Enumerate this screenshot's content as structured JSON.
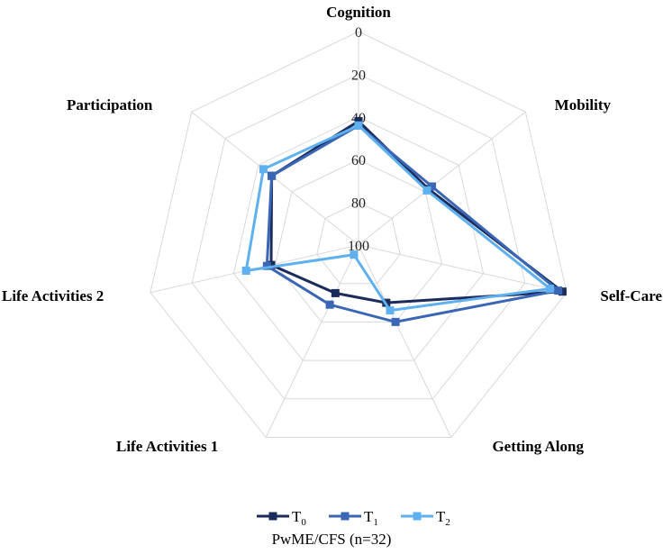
{
  "chart_data": {
    "type": "radar",
    "axes": [
      "Cognition",
      "Mobility",
      "Self-Care",
      "Getting Along",
      "Life Activities 1",
      "Life Activities 2",
      "Participation"
    ],
    "ticks": [
      "0",
      "20",
      "40",
      "60",
      "80",
      "100"
    ],
    "range": [
      0,
      100
    ],
    "reversed": true,
    "grid": true,
    "legend_position": "bottom",
    "series": [
      {
        "name": "T",
        "subscript": "0",
        "color": "#1a2b5c",
        "values": [
          42,
          58,
          2,
          70,
          75,
          58,
          48
        ]
      },
      {
        "name": "T",
        "subscript": "1",
        "color": "#3a66b5",
        "values": [
          44,
          56,
          4,
          60,
          69,
          56,
          48
        ]
      },
      {
        "name": "T",
        "subscript": "2",
        "color": "#5fb0ee",
        "values": [
          44,
          59,
          8,
          66,
          95,
          46,
          43
        ]
      }
    ],
    "subtitle": "PwME/CFS (n=32)"
  }
}
